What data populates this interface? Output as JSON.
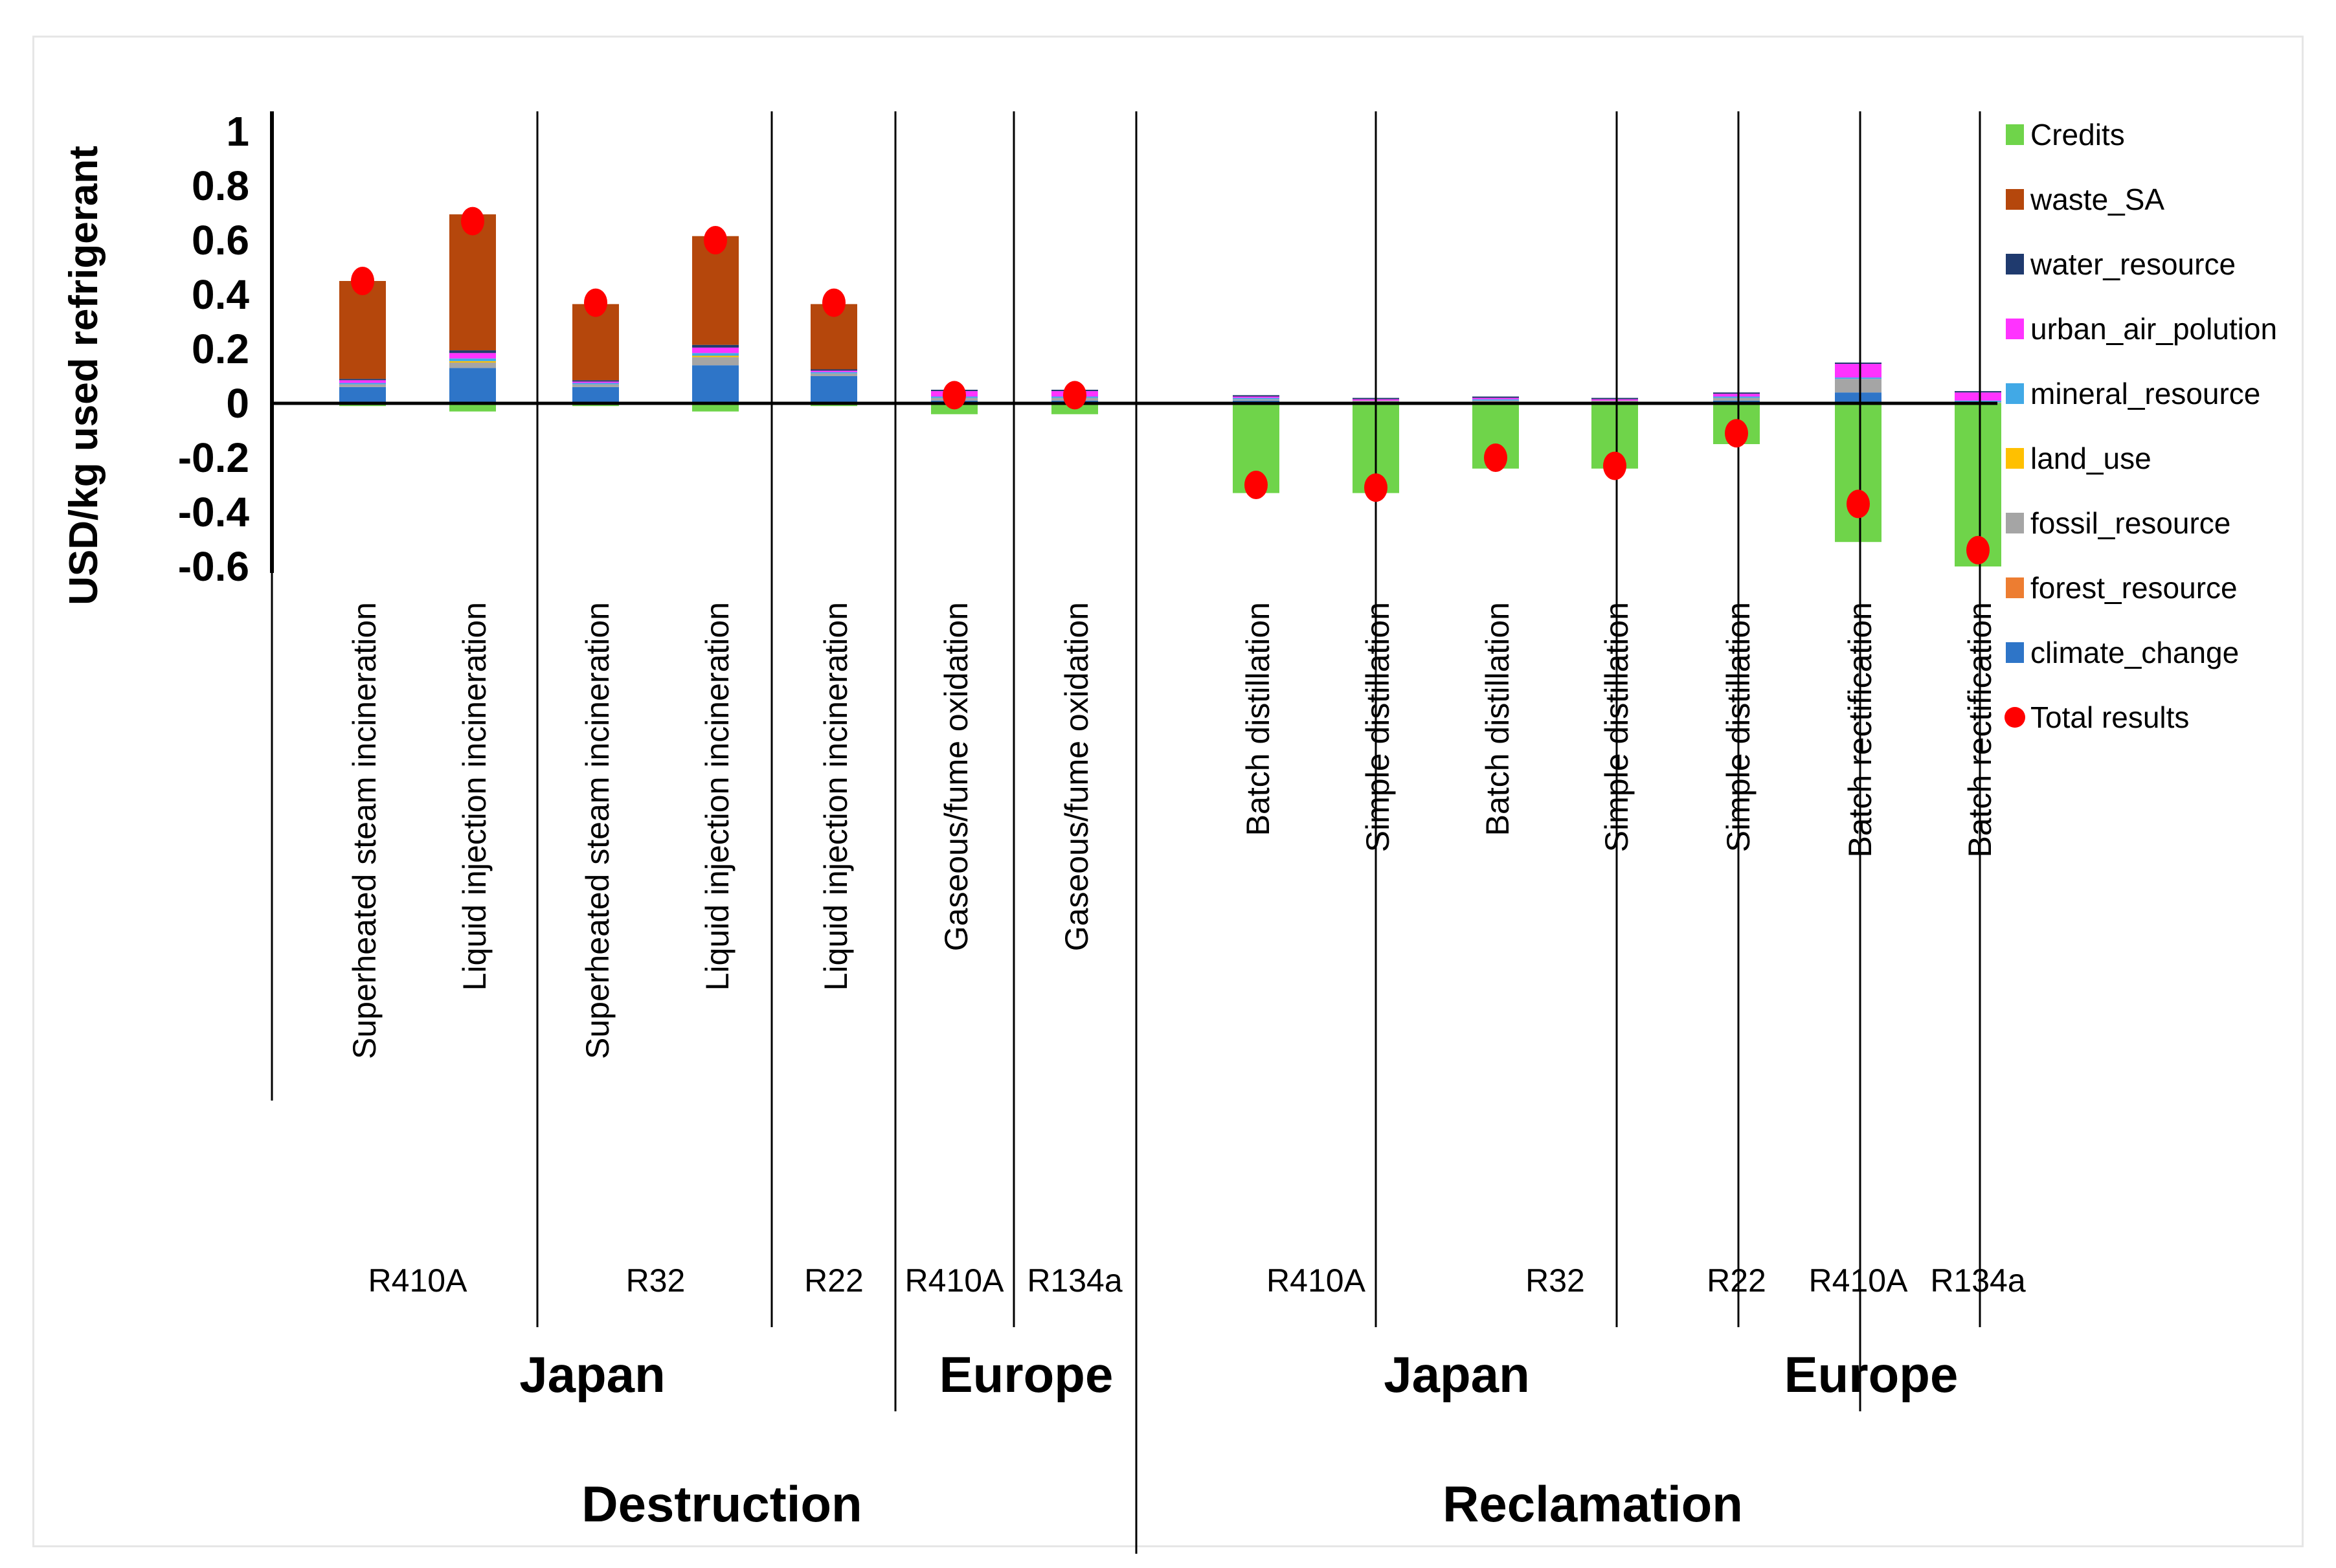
{
  "chart_data": {
    "type": "bar",
    "stacked": true,
    "ylabel": "USD/kg used refrigerant",
    "ylim": [
      -0.6,
      1
    ],
    "yticks": [
      1,
      0.8,
      0.6,
      0.4,
      0.2,
      0,
      -0.2,
      -0.4,
      -0.6
    ],
    "ytick_labels": [
      "1",
      "0.8",
      "0.6",
      "0.4",
      "0.2",
      "0",
      "-0.2",
      "-0.4",
      "-0.6"
    ],
    "legend_position": "right",
    "categories": [
      "Superheated steam incineration",
      "Liquid injection incineration",
      "Superheated steam incineration",
      "Liquid injection incineration",
      "Liquid injection incineration",
      "Gaseous/fume oxidation",
      "Gaseous/fume oxidation",
      "Batch distillation",
      "Simple distillation",
      "Batch distillation",
      "Simple distillation",
      "Simple distillation",
      "Batch rectification",
      "Batch rectification"
    ],
    "refrigerant_groups": [
      {
        "label": "R410A",
        "count": 2
      },
      {
        "label": "R32",
        "count": 2
      },
      {
        "label": "R22",
        "count": 1
      },
      {
        "label": "R410A",
        "count": 1
      },
      {
        "label": "R134a",
        "count": 1
      },
      {
        "label": "R410A",
        "count": 2
      },
      {
        "label": "R32",
        "count": 2
      },
      {
        "label": "R22",
        "count": 1
      },
      {
        "label": "R410A",
        "count": 1
      },
      {
        "label": "R134a",
        "count": 1
      }
    ],
    "region_groups": [
      {
        "label": "Japan",
        "count": 5
      },
      {
        "label": "Europe",
        "count": 2
      },
      {
        "label": "Japan",
        "count": 5
      },
      {
        "label": "Europe",
        "count": 2
      }
    ],
    "process_groups": [
      {
        "label": "Destruction",
        "count": 7
      },
      {
        "label": "Reclamation",
        "count": 7
      }
    ],
    "series": [
      {
        "name": "climate_change",
        "color": "#2e75c8",
        "values": [
          0.06,
          0.13,
          0.06,
          0.14,
          0.1,
          0.01,
          0.01,
          0.01,
          0.005,
          0.005,
          0.005,
          0.01,
          0.04,
          0.0
        ]
      },
      {
        "name": "forest_resource",
        "color": "#ed7d31",
        "values": [
          0,
          0,
          0,
          0,
          0,
          0,
          0,
          0,
          0,
          0,
          0,
          0,
          0,
          0
        ]
      },
      {
        "name": "fossil_resource",
        "color": "#a5a5a5",
        "values": [
          0.01,
          0.02,
          0.01,
          0.03,
          0.01,
          0.01,
          0.01,
          0.005,
          0.005,
          0.005,
          0.005,
          0.01,
          0.05,
          0.005
        ]
      },
      {
        "name": "land_use",
        "color": "#ffc000",
        "values": [
          0,
          0.005,
          0,
          0.005,
          0,
          0,
          0,
          0,
          0,
          0,
          0,
          0,
          0,
          0
        ]
      },
      {
        "name": "mineral_resource",
        "color": "#41a9e6",
        "values": [
          0.005,
          0.01,
          0.005,
          0.01,
          0.005,
          0.005,
          0.005,
          0.005,
          0,
          0.005,
          0,
          0.005,
          0.005,
          0.005
        ]
      },
      {
        "name": "urban_air_polution",
        "color": "#ff33ff",
        "values": [
          0.01,
          0.02,
          0.005,
          0.02,
          0.005,
          0.02,
          0.02,
          0.005,
          0.005,
          0.005,
          0.005,
          0.01,
          0.05,
          0.03
        ]
      },
      {
        "name": "water_resource",
        "color": "#1f3a6e",
        "values": [
          0.005,
          0.01,
          0.005,
          0.01,
          0.005,
          0.005,
          0.005,
          0.005,
          0.005,
          0.005,
          0.005,
          0.005,
          0.005,
          0.005
        ]
      },
      {
        "name": "waste_SA",
        "color": "#b5470c",
        "values": [
          0.36,
          0.5,
          0.28,
          0.4,
          0.24,
          0,
          0,
          0,
          0,
          0,
          0,
          0,
          0,
          0
        ]
      },
      {
        "name": "Credits",
        "color": "#6fd44a",
        "values": [
          -0.01,
          -0.03,
          -0.01,
          -0.03,
          -0.01,
          -0.04,
          -0.04,
          -0.33,
          -0.33,
          -0.24,
          -0.24,
          -0.15,
          -0.51,
          -0.6
        ]
      }
    ],
    "total_results": {
      "name": "Total results",
      "color": "#ff0000",
      "values": [
        0.45,
        0.67,
        0.37,
        0.6,
        0.37,
        0.03,
        0.03,
        -0.3,
        -0.31,
        -0.2,
        -0.23,
        -0.11,
        -0.37,
        -0.54
      ]
    },
    "legend": [
      "Credits",
      "waste_SA",
      "water_resource",
      "urban_air_polution",
      "mineral_resource",
      "land_use",
      "fossil_resource",
      "forest_resource",
      "climate_change",
      "Total results"
    ]
  }
}
